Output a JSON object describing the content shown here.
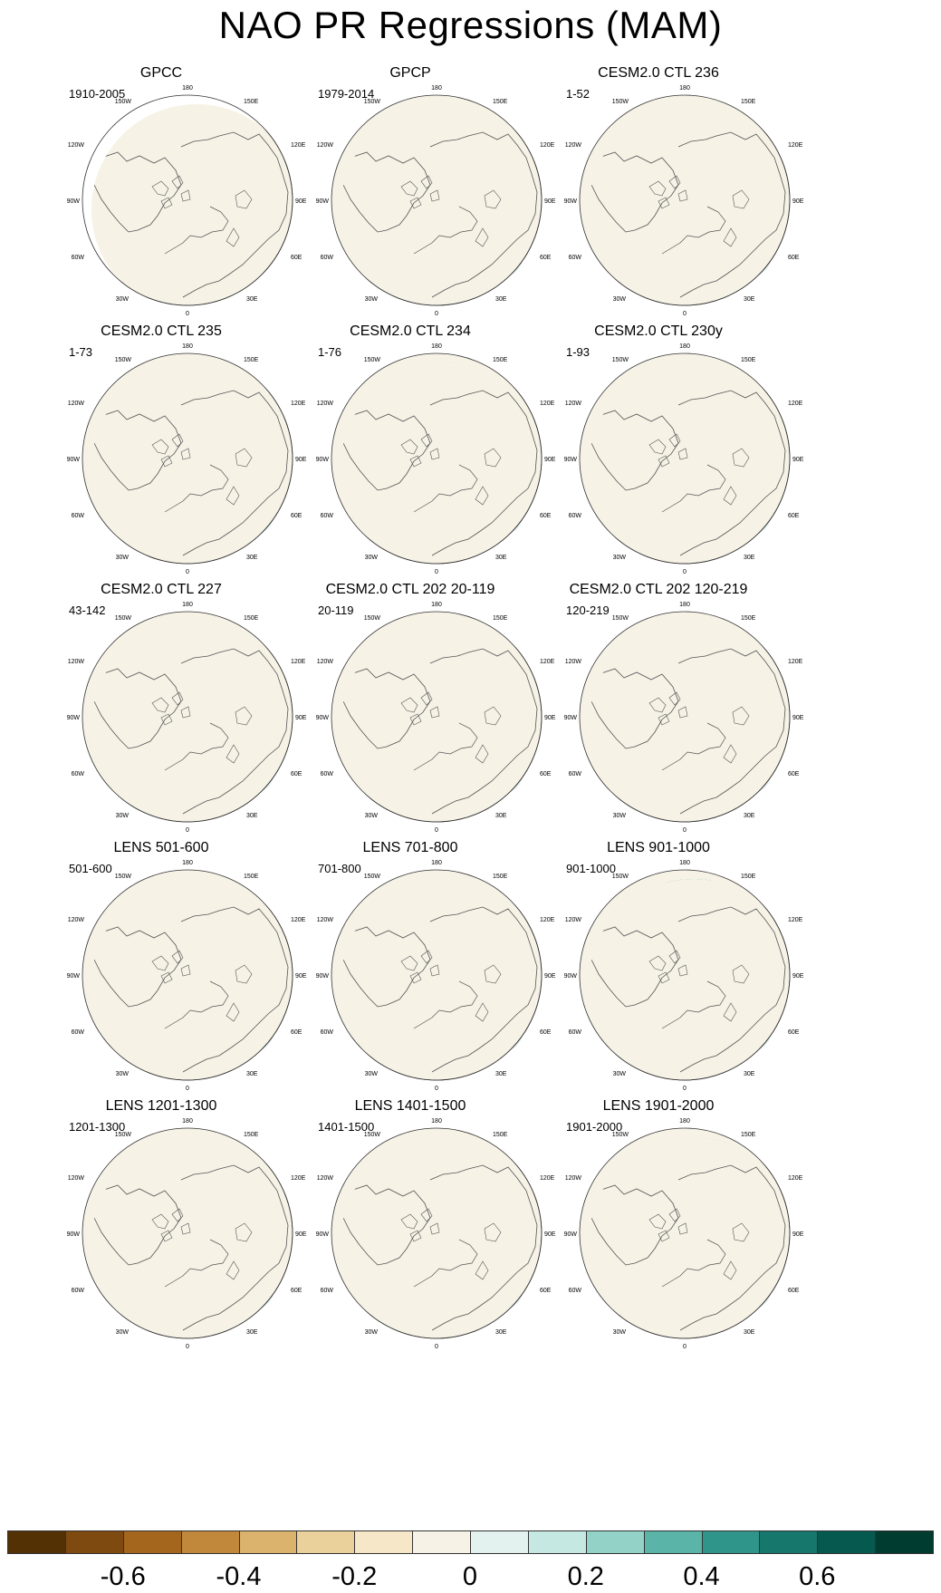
{
  "title": "NAO PR Regressions (MAM)",
  "lon_labels": {
    "l180": "180",
    "l150e": "150E",
    "l120e": "120E",
    "l90e": "90E",
    "l60e": "60E",
    "l30e": "30E",
    "l0": "0",
    "l30w": "30W",
    "l60w": "60W",
    "l90w": "90W",
    "l120w": "120W",
    "l150w": "150W"
  },
  "panels": [
    {
      "title": "GPCC",
      "period": "1910-2005"
    },
    {
      "title": "GPCP",
      "period": "1979-2014"
    },
    {
      "title": "CESM2.0 CTL 236",
      "period": "1-52"
    },
    {
      "title": "CESM2.0 CTL 235",
      "period": "1-73"
    },
    {
      "title": "CESM2.0 CTL 234",
      "period": "1-76"
    },
    {
      "title": "CESM2.0 CTL 230y",
      "period": "1-93"
    },
    {
      "title": "CESM2.0 CTL 227",
      "period": "43-142"
    },
    {
      "title": "CESM2.0 CTL 202 20-119",
      "period": "20-119"
    },
    {
      "title": "CESM2.0 CTL 202 120-219",
      "period": "120-219"
    },
    {
      "title": "LENS 501-600",
      "period": "501-600"
    },
    {
      "title": "LENS 701-800",
      "period": "701-800"
    },
    {
      "title": "LENS 901-1000",
      "period": "901-1000"
    },
    {
      "title": "LENS 1201-1300",
      "period": "1201-1300"
    },
    {
      "title": "LENS 1401-1500",
      "period": "1401-1500"
    },
    {
      "title": "LENS 1901-2000",
      "period": "1901-2000"
    }
  ],
  "colorbar": {
    "labels": [
      "-0.6",
      "-0.4",
      "-0.2",
      "0",
      "0.2",
      "0.4",
      "0.6"
    ],
    "colors": [
      "#543005",
      "#7f4a0f",
      "#a4661d",
      "#c1873a",
      "#dbb36d",
      "#ead19b",
      "#f5e7c8",
      "#f6f2e6",
      "#e3f1ef",
      "#c6e8e2",
      "#93d2c7",
      "#5ab5a8",
      "#2f958b",
      "#16776d",
      "#06594f",
      "#003c30"
    ]
  }
}
